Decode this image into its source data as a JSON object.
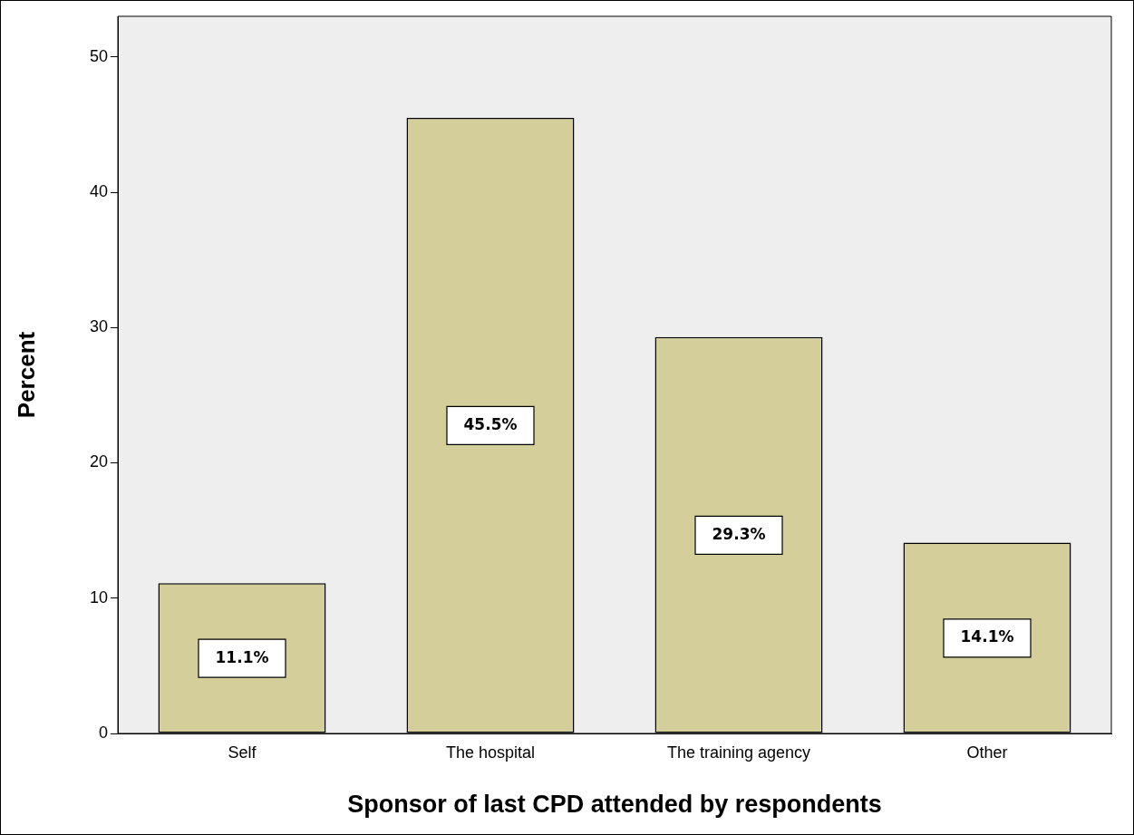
{
  "chart_data": {
    "type": "bar",
    "xlabel": "Sponsor of last CPD attended by respondents",
    "ylabel": "Percent",
    "categories": [
      "Self",
      "The hospital",
      "The training agency",
      "Other"
    ],
    "values": [
      11.1,
      45.5,
      29.3,
      14.1
    ],
    "value_labels": [
      "11.1%",
      "45.5%",
      "29.3%",
      "14.1%"
    ],
    "color": "#d4cf9a",
    "ylim": [
      0,
      53
    ],
    "yticks": [
      0,
      10,
      20,
      30,
      40,
      50
    ],
    "grid": false,
    "legend": false
  }
}
